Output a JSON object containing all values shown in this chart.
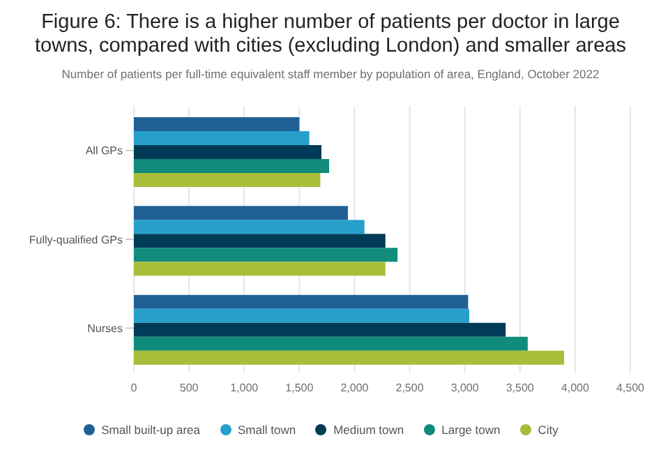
{
  "chart_data": {
    "type": "bar",
    "orientation": "horizontal",
    "title": "Figure 6: There is a higher number of patients per doctor in large towns, compared with cities (excluding London) and smaller areas",
    "subtitle": "Number of patients per full-time equivalent staff member by population of area, England, October 2022",
    "categories": [
      "All GPs",
      "Fully-qualified GPs",
      "Nurses"
    ],
    "series": [
      {
        "name": "Small built-up area",
        "color": "#206095",
        "values": [
          1500,
          1940,
          3030
        ]
      },
      {
        "name": "Small town",
        "color": "#27a0cc",
        "values": [
          1590,
          2090,
          3040
        ]
      },
      {
        "name": "Medium town",
        "color": "#003c57",
        "values": [
          1700,
          2280,
          3370
        ]
      },
      {
        "name": "Large town",
        "color": "#118c7b",
        "values": [
          1770,
          2390,
          3570
        ]
      },
      {
        "name": "City",
        "color": "#a8bd3a",
        "values": [
          1690,
          2280,
          3900
        ]
      }
    ],
    "xlim": [
      0,
      4500
    ],
    "xticks": [
      0,
      500,
      {
        "value": 1000,
        "label": "1,000"
      },
      {
        "value": 1500,
        "label": "1,500"
      },
      {
        "value": 2000,
        "label": "2,000"
      },
      {
        "value": 2500,
        "label": "2,500"
      },
      {
        "value": 3000,
        "label": "3,000"
      },
      {
        "value": 3500,
        "label": "3,500"
      },
      {
        "value": 4000,
        "label": "4,000"
      },
      {
        "value": 4500,
        "label": "4,500"
      }
    ],
    "grid": "x",
    "legend": "bottom"
  }
}
